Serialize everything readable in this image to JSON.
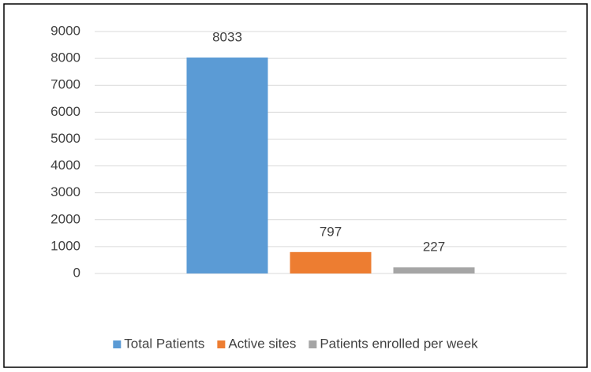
{
  "chart_data": {
    "type": "bar",
    "categories": [
      null
    ],
    "series": [
      {
        "name": "Total Patients",
        "color": "#5b9bd5",
        "values": [
          8033
        ]
      },
      {
        "name": "Active sites",
        "color": "#ed7d31",
        "values": [
          797
        ]
      },
      {
        "name": "Patients enrolled per week",
        "color": "#a5a5a5",
        "values": [
          227
        ]
      }
    ],
    "ylim": [
      0,
      9000
    ],
    "yticks": [
      0,
      1000,
      2000,
      3000,
      4000,
      5000,
      6000,
      7000,
      8000,
      9000
    ],
    "grid": true,
    "legend": "bottom"
  }
}
